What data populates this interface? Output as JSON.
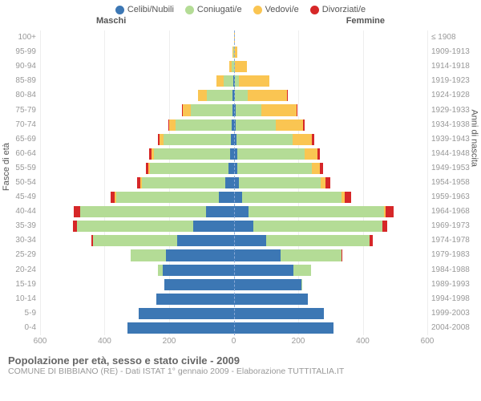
{
  "title": "Popolazione per età, sesso e stato civile - 2009",
  "subtitle": "COMUNE DI BIBBIANO (RE) - Dati ISTAT 1° gennaio 2009 - Elaborazione TUTTITALIA.IT",
  "legend": [
    {
      "label": "Celibi/Nubili",
      "color": "#3c77b4"
    },
    {
      "label": "Coniugati/e",
      "color": "#b4dc96"
    },
    {
      "label": "Vedovi/e",
      "color": "#fac552"
    },
    {
      "label": "Divorziati/e",
      "color": "#d62728"
    }
  ],
  "header_male": "Maschi",
  "header_female": "Femmine",
  "y_label_left": "Fasce di età",
  "y_label_right": "Anni di nascita",
  "x_ticks": [
    600,
    400,
    200,
    0,
    200,
    400,
    600
  ],
  "x_max": 600,
  "background_color": "#ffffff",
  "grid_color": "#eeeeee",
  "centerline_color": "#8aa9d6",
  "bands": [
    {
      "age": "0-4",
      "birth": "2004-2008",
      "m": {
        "c": 330,
        "m": 0,
        "w": 0,
        "d": 0
      },
      "f": {
        "c": 310,
        "m": 0,
        "w": 0,
        "d": 0
      }
    },
    {
      "age": "5-9",
      "birth": "1999-2003",
      "m": {
        "c": 295,
        "m": 0,
        "w": 0,
        "d": 0
      },
      "f": {
        "c": 280,
        "m": 0,
        "w": 0,
        "d": 0
      }
    },
    {
      "age": "10-14",
      "birth": "1994-1998",
      "m": {
        "c": 240,
        "m": 0,
        "w": 0,
        "d": 0
      },
      "f": {
        "c": 230,
        "m": 0,
        "w": 0,
        "d": 0
      }
    },
    {
      "age": "15-19",
      "birth": "1989-1993",
      "m": {
        "c": 215,
        "m": 0,
        "w": 0,
        "d": 0
      },
      "f": {
        "c": 210,
        "m": 2,
        "w": 0,
        "d": 0
      }
    },
    {
      "age": "20-24",
      "birth": "1984-1988",
      "m": {
        "c": 220,
        "m": 15,
        "w": 0,
        "d": 0
      },
      "f": {
        "c": 185,
        "m": 55,
        "w": 0,
        "d": 0
      }
    },
    {
      "age": "25-29",
      "birth": "1979-1983",
      "m": {
        "c": 210,
        "m": 110,
        "w": 0,
        "d": 0
      },
      "f": {
        "c": 145,
        "m": 190,
        "w": 0,
        "d": 2
      }
    },
    {
      "age": "30-34",
      "birth": "1974-1978",
      "m": {
        "c": 175,
        "m": 260,
        "w": 0,
        "d": 6
      },
      "f": {
        "c": 100,
        "m": 320,
        "w": 0,
        "d": 10
      }
    },
    {
      "age": "35-39",
      "birth": "1969-1973",
      "m": {
        "c": 125,
        "m": 360,
        "w": 0,
        "d": 12
      },
      "f": {
        "c": 60,
        "m": 400,
        "w": 2,
        "d": 15
      }
    },
    {
      "age": "40-44",
      "birth": "1964-1968",
      "m": {
        "c": 85,
        "m": 390,
        "w": 2,
        "d": 18
      },
      "f": {
        "c": 45,
        "m": 420,
        "w": 5,
        "d": 25
      }
    },
    {
      "age": "45-49",
      "birth": "1959-1963",
      "m": {
        "c": 45,
        "m": 320,
        "w": 3,
        "d": 14
      },
      "f": {
        "c": 25,
        "m": 310,
        "w": 10,
        "d": 18
      }
    },
    {
      "age": "50-54",
      "birth": "1954-1958",
      "m": {
        "c": 25,
        "m": 260,
        "w": 4,
        "d": 10
      },
      "f": {
        "c": 15,
        "m": 255,
        "w": 15,
        "d": 15
      }
    },
    {
      "age": "55-59",
      "birth": "1949-1953",
      "m": {
        "c": 15,
        "m": 245,
        "w": 5,
        "d": 8
      },
      "f": {
        "c": 12,
        "m": 230,
        "w": 25,
        "d": 10
      }
    },
    {
      "age": "60-64",
      "birth": "1944-1948",
      "m": {
        "c": 12,
        "m": 235,
        "w": 8,
        "d": 6
      },
      "f": {
        "c": 10,
        "m": 210,
        "w": 40,
        "d": 8
      }
    },
    {
      "age": "65-69",
      "birth": "1939-1943",
      "m": {
        "c": 8,
        "m": 210,
        "w": 12,
        "d": 4
      },
      "f": {
        "c": 8,
        "m": 175,
        "w": 60,
        "d": 6
      }
    },
    {
      "age": "70-74",
      "birth": "1934-1938",
      "m": {
        "c": 6,
        "m": 175,
        "w": 20,
        "d": 2
      },
      "f": {
        "c": 6,
        "m": 125,
        "w": 85,
        "d": 4
      }
    },
    {
      "age": "75-79",
      "birth": "1929-1933",
      "m": {
        "c": 4,
        "m": 130,
        "w": 25,
        "d": 1
      },
      "f": {
        "c": 5,
        "m": 80,
        "w": 110,
        "d": 2
      }
    },
    {
      "age": "80-84",
      "birth": "1924-1928",
      "m": {
        "c": 3,
        "m": 80,
        "w": 28,
        "d": 0
      },
      "f": {
        "c": 4,
        "m": 40,
        "w": 120,
        "d": 1
      }
    },
    {
      "age": "85-89",
      "birth": "1919-1923",
      "m": {
        "c": 1,
        "m": 30,
        "w": 22,
        "d": 0
      },
      "f": {
        "c": 3,
        "m": 12,
        "w": 95,
        "d": 0
      }
    },
    {
      "age": "90-94",
      "birth": "1914-1918",
      "m": {
        "c": 0,
        "m": 6,
        "w": 8,
        "d": 0
      },
      "f": {
        "c": 1,
        "m": 3,
        "w": 38,
        "d": 0
      }
    },
    {
      "age": "95-99",
      "birth": "1909-1913",
      "m": {
        "c": 0,
        "m": 1,
        "w": 3,
        "d": 0
      },
      "f": {
        "c": 0,
        "m": 0,
        "w": 12,
        "d": 0
      }
    },
    {
      "age": "100+",
      "birth": "≤ 1908",
      "m": {
        "c": 0,
        "m": 0,
        "w": 0,
        "d": 0
      },
      "f": {
        "c": 0,
        "m": 0,
        "w": 2,
        "d": 0
      }
    }
  ]
}
